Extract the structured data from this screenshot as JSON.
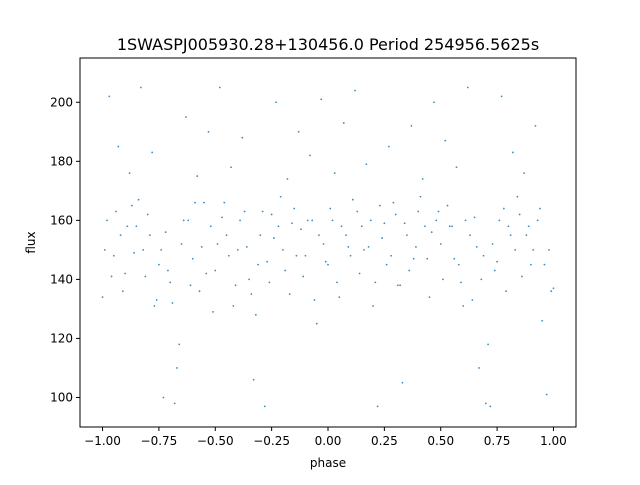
{
  "chart_data": {
    "type": "scatter",
    "title": "1SWASPJ005930.28+130456.0 Period 254956.5625s",
    "xlabel": "phase",
    "ylabel": "flux",
    "xlim": [
      -1.1,
      1.1
    ],
    "ylim": [
      90,
      215
    ],
    "grid": false,
    "legend": "none",
    "marker_color": "#1f77b4",
    "xticks": [
      {
        "value": -1.0,
        "label": "−1.00"
      },
      {
        "value": -0.75,
        "label": "−0.75"
      },
      {
        "value": -0.5,
        "label": "−0.50"
      },
      {
        "value": -0.25,
        "label": "−0.25"
      },
      {
        "value": 0.0,
        "label": "0.00"
      },
      {
        "value": 0.25,
        "label": "0.25"
      },
      {
        "value": 0.5,
        "label": "0.50"
      },
      {
        "value": 0.75,
        "label": "0.75"
      },
      {
        "value": 1.0,
        "label": "1.00"
      }
    ],
    "yticks": [
      {
        "value": 100,
        "label": "100"
      },
      {
        "value": 120,
        "label": "120"
      },
      {
        "value": 140,
        "label": "140"
      },
      {
        "value": 160,
        "label": "160"
      },
      {
        "value": 180,
        "label": "180"
      },
      {
        "value": 200,
        "label": "200"
      }
    ],
    "series": [
      {
        "x": [
          -1.0,
          -0.98,
          -0.95,
          -0.92,
          -0.9,
          -0.87,
          -0.85,
          -0.82,
          -0.8,
          -0.77,
          -0.75,
          -0.72,
          -0.7,
          -0.68,
          -0.65,
          -0.62,
          -0.6,
          -0.57,
          -0.55,
          -0.52,
          -0.5,
          -0.47,
          -0.45,
          -0.42,
          -0.4,
          -0.37,
          -0.35,
          -0.32,
          -0.3,
          -0.27,
          -0.25,
          -0.22,
          -0.2,
          -0.17,
          -0.15,
          -0.12,
          -0.1,
          -0.07,
          -0.05,
          -0.02,
          0.0,
          0.02,
          0.05,
          0.08,
          0.1,
          0.13,
          0.15,
          0.18,
          0.2,
          0.23,
          0.25,
          0.28,
          0.3,
          0.32,
          0.35,
          0.38,
          0.4,
          0.43,
          0.45,
          0.48,
          0.5,
          0.53,
          0.55,
          0.58,
          0.6,
          0.63,
          0.65,
          0.68,
          0.7,
          0.73,
          0.75,
          0.78,
          0.8,
          0.83,
          0.85,
          0.88,
          0.9,
          0.93,
          0.95,
          0.98,
          1.0
        ],
        "y": [
          134,
          160,
          148,
          155,
          142,
          165,
          158,
          150,
          162,
          131,
          145,
          156,
          139,
          98,
          152,
          160,
          147,
          136,
          166,
          158,
          143,
          161,
          155,
          131,
          150,
          163,
          140,
          128,
          155,
          146,
          162,
          158,
          150,
          135,
          164,
          157,
          148,
          160,
          125,
          152,
          145,
          160,
          134,
          155,
          148,
          163,
          158,
          151,
          131,
          165,
          159,
          148,
          162,
          138,
          155,
          147,
          163,
          158,
          134,
          160,
          152,
          165,
          158,
          145,
          131,
          155,
          161,
          140,
          98,
          152,
          146,
          164,
          158,
          150,
          162,
          155,
          145,
          160,
          126,
          150,
          137
        ]
      },
      {
        "x": [
          -0.99,
          -0.96,
          -0.94,
          -0.91,
          -0.89,
          -0.86,
          -0.84,
          -0.81,
          -0.79,
          -0.76,
          -0.74,
          -0.71,
          -0.69,
          -0.66,
          -0.64,
          -0.61,
          -0.59,
          -0.56,
          -0.54,
          -0.51,
          -0.49,
          -0.46,
          -0.44,
          -0.41,
          -0.39,
          -0.36,
          -0.34,
          -0.31,
          -0.29,
          -0.26,
          -0.24,
          -0.21,
          -0.19,
          -0.16,
          -0.14,
          -0.11,
          -0.09,
          -0.06,
          -0.04,
          -0.01,
          0.01,
          0.04,
          0.06,
          0.09,
          0.11,
          0.14,
          0.16,
          0.19,
          0.21,
          0.24,
          0.26,
          0.29,
          0.31,
          0.34,
          0.36,
          0.39,
          0.41,
          0.44,
          0.46,
          0.49,
          0.51,
          0.54,
          0.56,
          0.59,
          0.61,
          0.64,
          0.66,
          0.69,
          0.71,
          0.74,
          0.76,
          0.79,
          0.81,
          0.84,
          0.86,
          0.89,
          0.91,
          0.94,
          0.96,
          0.99
        ],
        "y": [
          150,
          141,
          163,
          136,
          158,
          149,
          167,
          141,
          155,
          133,
          150,
          143,
          132,
          118,
          160,
          138,
          166,
          151,
          142,
          129,
          152,
          166,
          148,
          138,
          160,
          151,
          135,
          145,
          163,
          139,
          154,
          168,
          143,
          159,
          148,
          141,
          160,
          133,
          155,
          146,
          164,
          139,
          158,
          151,
          167,
          142,
          150,
          160,
          139,
          154,
          145,
          166,
          138,
          159,
          143,
          151,
          168,
          147,
          156,
          163,
          140,
          158,
          147,
          139,
          160,
          133,
          151,
          148,
          118,
          143,
          160,
          136,
          155,
          168,
          141,
          158,
          150,
          164,
          145,
          136
        ]
      },
      {
        "x": [
          -0.97,
          -0.93,
          -0.88,
          -0.83,
          -0.78,
          -0.73,
          -0.67,
          -0.63,
          -0.58,
          -0.53,
          -0.48,
          -0.43,
          -0.38,
          -0.33,
          -0.28,
          -0.23,
          -0.18,
          -0.13,
          -0.08,
          -0.03,
          0.03,
          0.07,
          0.12,
          0.17,
          0.22,
          0.27,
          0.33,
          0.37,
          0.42,
          0.47,
          0.52,
          0.57,
          0.62,
          0.67,
          0.72,
          0.77,
          0.82,
          0.87,
          0.92,
          0.97
        ],
        "y": [
          202,
          185,
          176,
          205,
          183,
          100,
          110,
          195,
          175,
          190,
          205,
          178,
          188,
          106,
          97,
          200,
          174,
          190,
          182,
          201,
          176,
          193,
          204,
          179,
          97,
          185,
          105,
          192,
          174,
          200,
          187,
          178,
          205,
          110,
          97,
          202,
          183,
          176,
          192,
          101
        ]
      }
    ]
  }
}
